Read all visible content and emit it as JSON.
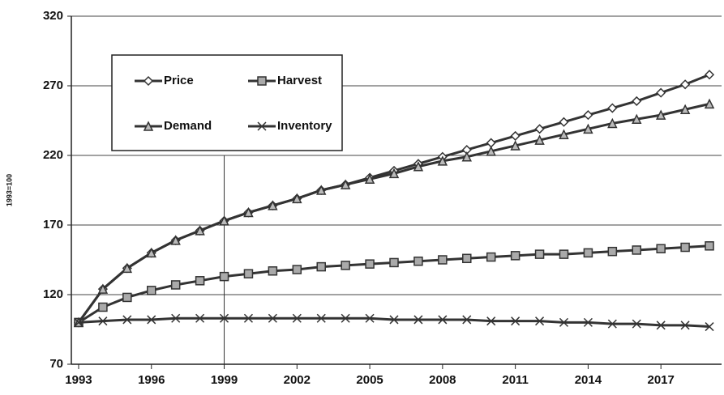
{
  "chart_data": {
    "type": "line",
    "y_label": "1993=100",
    "x": [
      1993,
      1994,
      1995,
      1996,
      1997,
      1998,
      1999,
      2000,
      2001,
      2002,
      2003,
      2004,
      2005,
      2006,
      2007,
      2008,
      2009,
      2010,
      2011,
      2012,
      2013,
      2014,
      2015,
      2016,
      2017,
      2018,
      2019
    ],
    "series": [
      {
        "name": "Price",
        "color": "#333333",
        "marker": "diamond",
        "values": [
          100,
          124,
          139,
          150,
          159,
          166,
          173,
          179,
          184,
          189,
          195,
          199,
          204,
          209,
          214,
          219,
          224,
          229,
          234,
          239,
          244,
          249,
          254,
          259,
          265,
          271,
          278
        ]
      },
      {
        "name": "Harvest",
        "color": "#333333",
        "marker": "square",
        "values": [
          100,
          111,
          118,
          123,
          127,
          130,
          133,
          135,
          137,
          138,
          140,
          141,
          142,
          143,
          144,
          145,
          146,
          147,
          148,
          149,
          149,
          150,
          151,
          152,
          153,
          154,
          155
        ]
      },
      {
        "name": "Demand",
        "color": "#333333",
        "marker": "triangle",
        "values": [
          100,
          124,
          139,
          150,
          159,
          166,
          173,
          179,
          184,
          189,
          195,
          199,
          203,
          207,
          212,
          216,
          219,
          223,
          227,
          231,
          235,
          239,
          243,
          246,
          249,
          253,
          257
        ]
      },
      {
        "name": "Inventory",
        "color": "#333333",
        "marker": "x",
        "values": [
          100,
          101,
          102,
          102,
          103,
          103,
          103,
          103,
          103,
          103,
          103,
          103,
          103,
          102,
          102,
          102,
          102,
          101,
          101,
          101,
          100,
          100,
          99,
          99,
          98,
          98,
          97
        ]
      }
    ],
    "xlim": [
      1992.7,
      2019.5
    ],
    "xticks": [
      1993,
      1996,
      1999,
      2002,
      2005,
      2008,
      2011,
      2014,
      2017
    ],
    "ylim": [
      70,
      320
    ],
    "yticks": [
      70,
      120,
      170,
      220,
      270,
      320
    ],
    "grid": true,
    "vlines": [
      {
        "x": 1999,
        "ymax": 220
      }
    ],
    "legend": "upper left"
  }
}
